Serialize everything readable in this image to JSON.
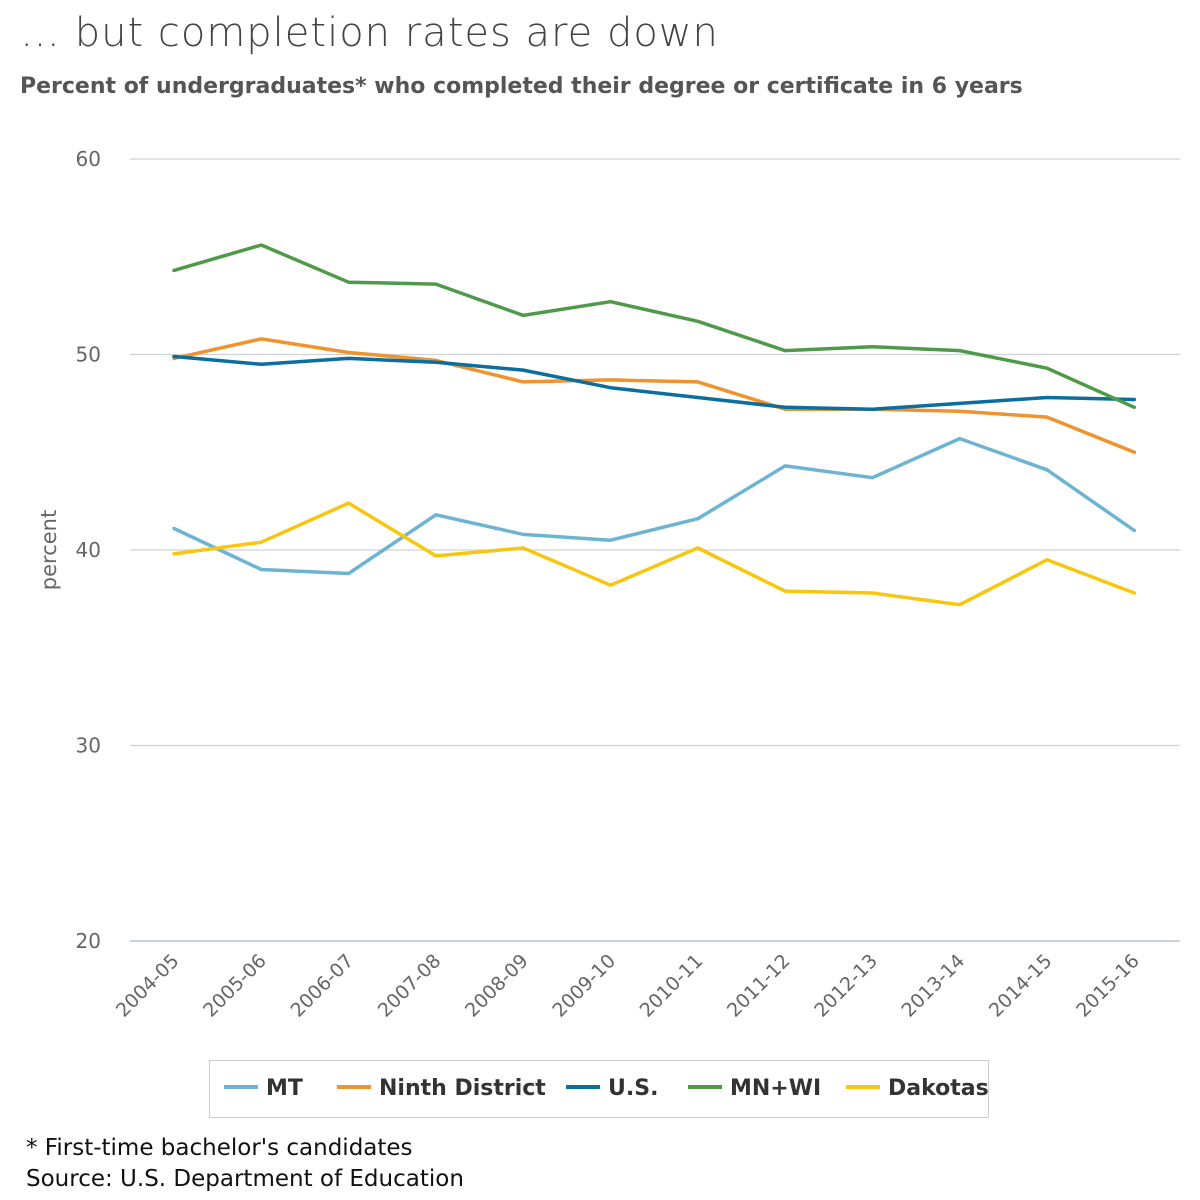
{
  "title": "… but completion rates are down",
  "subtitle": "Percent of undergraduates* who completed their degree or certificate in 6 years",
  "footnotes": {
    "note": "* First-time bachelor's candidates",
    "source": "Source: U.S. Department of Education"
  },
  "chart_data": {
    "type": "line",
    "ylabel": "percent",
    "xlabel": "",
    "ylim": [
      20,
      60
    ],
    "yticks": [
      20,
      30,
      40,
      50,
      60
    ],
    "grid": true,
    "legend_position": "bottom",
    "categories": [
      "2004-05",
      "2005-06",
      "2006-07",
      "2007-08",
      "2008-09",
      "2009-10",
      "2010-11",
      "2011-12",
      "2012-13",
      "2013-14",
      "2014-15",
      "2015-16"
    ],
    "series": [
      {
        "name": "MT",
        "color": "#6db3d2",
        "values": [
          41.1,
          39.0,
          38.8,
          41.8,
          40.8,
          40.5,
          41.6,
          44.3,
          43.7,
          45.7,
          44.1,
          41.0
        ]
      },
      {
        "name": "Ninth District",
        "color": "#f0922e",
        "values": [
          49.8,
          50.8,
          50.1,
          49.7,
          48.6,
          48.7,
          48.6,
          47.2,
          47.2,
          47.1,
          46.8,
          45.0
        ]
      },
      {
        "name": "U.S.",
        "color": "#0b6e9e",
        "values": [
          49.9,
          49.5,
          49.8,
          49.6,
          49.2,
          48.3,
          47.8,
          47.3,
          47.2,
          47.5,
          47.8,
          47.7
        ]
      },
      {
        "name": "MN+WI",
        "color": "#4e9a49",
        "values": [
          54.3,
          55.6,
          53.7,
          53.6,
          52.0,
          52.7,
          51.7,
          50.2,
          50.4,
          50.2,
          49.3,
          47.3
        ]
      },
      {
        "name": "Dakotas",
        "color": "#f7c60e",
        "values": [
          39.8,
          40.4,
          42.4,
          39.7,
          40.1,
          38.2,
          40.1,
          37.9,
          37.8,
          37.2,
          39.5,
          37.8
        ]
      }
    ]
  }
}
